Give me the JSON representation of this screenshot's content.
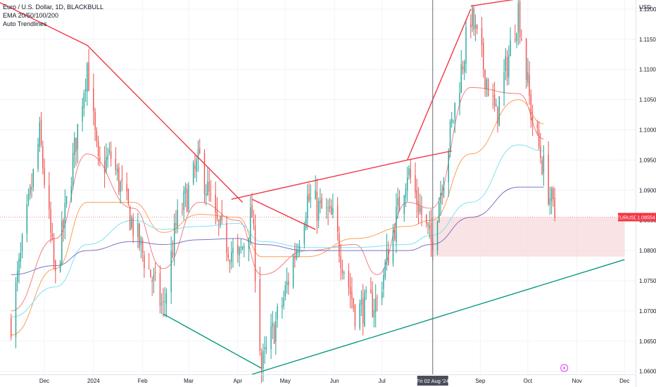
{
  "legend": {
    "symbol": "Euro / U.S. Dollar, 1D, BLACKBULL",
    "indicator_ema": "EMA 20/50/100/200",
    "indicator_trend": "Auto Trendlines"
  },
  "chart_data": {
    "type": "candlestick",
    "currency_label": "USD",
    "price_axis": {
      "ylim": [
        1.0595,
        1.1215
      ],
      "ticks": [
        "1.12000",
        "1.11500",
        "1.11000",
        "1.10500",
        "1.10000",
        "1.09500",
        "1.09000",
        "1.08500",
        "1.08000",
        "1.07500",
        "1.07000",
        "1.06500",
        "1.06000"
      ]
    },
    "time_axis": {
      "labels": [
        "Dec",
        "2024",
        "Feb",
        "Mar",
        "Apr",
        "May",
        "Jun",
        "Jul",
        "Sep",
        "Oct",
        "Nov",
        "Dec"
      ],
      "cursor_label": "Fri 02 Aug '24"
    },
    "last_price": {
      "symbol": "EURUSD",
      "value": "1.08554"
    },
    "colors": {
      "up": "#26a69a",
      "down": "#ef5350",
      "trend_resistance": "#f23645",
      "trend_support": "#089981",
      "ema20": "#f77c80",
      "ema50": "#ff9e57",
      "ema100": "#7fe3f0",
      "ema200": "#7e75c8",
      "zone": "#f8d7d9",
      "cursor": "#6a6d78"
    },
    "anchors": [
      [
        "2023-11-10",
        1.0684
      ],
      [
        "2023-11-28",
        1.099
      ],
      [
        "2023-12-08",
        1.075
      ],
      [
        "2023-12-28",
        1.111
      ],
      [
        "2024-01-04",
        1.0935
      ],
      [
        "2024-01-12",
        1.0955
      ],
      [
        "2024-01-26",
        1.084
      ],
      [
        "2024-02-14",
        1.0702
      ],
      [
        "2024-02-22",
        1.084
      ],
      [
        "2024-03-08",
        1.095
      ],
      [
        "2024-03-18",
        1.0845
      ],
      [
        "2024-04-01",
        1.078
      ],
      [
        "2024-04-10",
        1.086
      ],
      [
        "2024-04-16",
        1.0605
      ],
      [
        "2024-04-30",
        1.072
      ],
      [
        "2024-05-15",
        1.0885
      ],
      [
        "2024-05-31",
        1.085
      ],
      [
        "2024-06-14",
        1.07
      ],
      [
        "2024-06-28",
        1.0715
      ],
      [
        "2024-07-17",
        1.0935
      ],
      [
        "2024-08-01",
        1.081
      ],
      [
        "2024-08-26",
        1.119
      ],
      [
        "2024-09-11",
        1.102
      ],
      [
        "2024-09-25",
        1.12
      ],
      [
        "2024-10-03",
        1.103
      ],
      [
        "2024-10-11",
        1.0935
      ],
      [
        "2024-10-18",
        1.0855
      ]
    ],
    "ema_samples": {
      "ema20": [
        [
          "2023-11-10",
          1.07
        ],
        [
          "2023-12-08",
          1.082
        ],
        [
          "2023-12-28",
          1.096
        ],
        [
          "2024-01-26",
          1.087
        ],
        [
          "2024-02-14",
          1.077
        ],
        [
          "2024-03-08",
          1.088
        ],
        [
          "2024-04-01",
          1.085
        ],
        [
          "2024-04-16",
          1.076
        ],
        [
          "2024-05-15",
          1.08
        ],
        [
          "2024-06-14",
          1.081
        ],
        [
          "2024-06-28",
          1.076
        ],
        [
          "2024-07-17",
          1.088
        ],
        [
          "2024-08-01",
          1.087
        ],
        [
          "2024-08-26",
          1.107
        ],
        [
          "2024-09-25",
          1.106
        ],
        [
          "2024-10-11",
          1.0985
        ]
      ],
      "ema50": [
        [
          "2023-11-10",
          1.066
        ],
        [
          "2023-12-08",
          1.077
        ],
        [
          "2023-12-28",
          1.088
        ],
        [
          "2024-01-26",
          1.088
        ],
        [
          "2024-02-14",
          1.083
        ],
        [
          "2024-03-08",
          1.086
        ],
        [
          "2024-04-01",
          1.0855
        ],
        [
          "2024-04-16",
          1.079
        ],
        [
          "2024-05-15",
          1.079
        ],
        [
          "2024-06-14",
          1.082
        ],
        [
          "2024-07-17",
          1.084
        ],
        [
          "2024-08-01",
          1.085
        ],
        [
          "2024-08-26",
          1.096
        ],
        [
          "2024-09-25",
          1.105
        ],
        [
          "2024-10-11",
          1.101
        ]
      ],
      "ema100": [
        [
          "2023-11-10",
          1.069
        ],
        [
          "2023-12-08",
          1.074
        ],
        [
          "2023-12-28",
          1.081
        ],
        [
          "2024-01-26",
          1.085
        ],
        [
          "2024-02-14",
          1.0835
        ],
        [
          "2024-03-08",
          1.084
        ],
        [
          "2024-04-01",
          1.0845
        ],
        [
          "2024-04-16",
          1.0815
        ],
        [
          "2024-05-15",
          1.0805
        ],
        [
          "2024-06-14",
          1.0805
        ],
        [
          "2024-07-17",
          1.081
        ],
        [
          "2024-08-01",
          1.0825
        ],
        [
          "2024-08-26",
          1.088
        ],
        [
          "2024-09-25",
          1.0975
        ],
        [
          "2024-10-11",
          1.0965
        ]
      ],
      "ema200": [
        [
          "2023-11-10",
          1.076
        ],
        [
          "2023-12-08",
          1.0775
        ],
        [
          "2023-12-28",
          1.08
        ],
        [
          "2024-01-26",
          1.0815
        ],
        [
          "2024-02-14",
          1.081
        ],
        [
          "2024-03-08",
          1.0818
        ],
        [
          "2024-04-01",
          1.082
        ],
        [
          "2024-04-16",
          1.081
        ],
        [
          "2024-05-15",
          1.08
        ],
        [
          "2024-06-14",
          1.08
        ],
        [
          "2024-07-17",
          1.08
        ],
        [
          "2024-08-01",
          1.081
        ],
        [
          "2024-08-26",
          1.0855
        ],
        [
          "2024-09-25",
          1.0905
        ],
        [
          "2024-10-11",
          1.0905
        ]
      ]
    },
    "trendlines": [
      {
        "kind": "resistance",
        "from": [
          "2023-10-15",
          1.1235
        ],
        "to": [
          "2023-12-28",
          1.114
        ]
      },
      {
        "kind": "resistance",
        "from": [
          "2023-12-28",
          1.114
        ],
        "to": [
          "2024-04-04",
          1.088
        ]
      },
      {
        "kind": "resistance",
        "from": [
          "2024-04-10",
          1.0885
        ],
        "to": [
          "2024-05-20",
          1.0835
        ]
      },
      {
        "kind": "resistance",
        "from": [
          "2024-03-28",
          1.0885
        ],
        "to": [
          "2024-07-17",
          1.095
        ]
      },
      {
        "kind": "resistance",
        "from": [
          "2024-07-17",
          1.095
        ],
        "to": [
          "2024-08-26",
          1.12
        ]
      },
      {
        "kind": "resistance",
        "from": [
          "2024-07-17",
          1.095
        ],
        "to": [
          "2024-08-14",
          1.0965
        ]
      },
      {
        "kind": "resistance",
        "from": [
          "2024-08-26",
          1.1205
        ],
        "to": [
          "2024-11-10",
          1.1235
        ]
      },
      {
        "kind": "support",
        "from": [
          "2024-02-14",
          1.0695
        ],
        "to": [
          "2024-04-16",
          1.0605
        ]
      },
      {
        "kind": "support",
        "from": [
          "2024-04-10",
          1.0595
        ],
        "to": [
          "2024-12-01",
          1.0785
        ]
      }
    ],
    "zone": {
      "from": "2024-08-01",
      "to": "2024-12-01",
      "low": 1.079,
      "high": 1.0855
    },
    "cursor_date": "2024-08-02"
  }
}
